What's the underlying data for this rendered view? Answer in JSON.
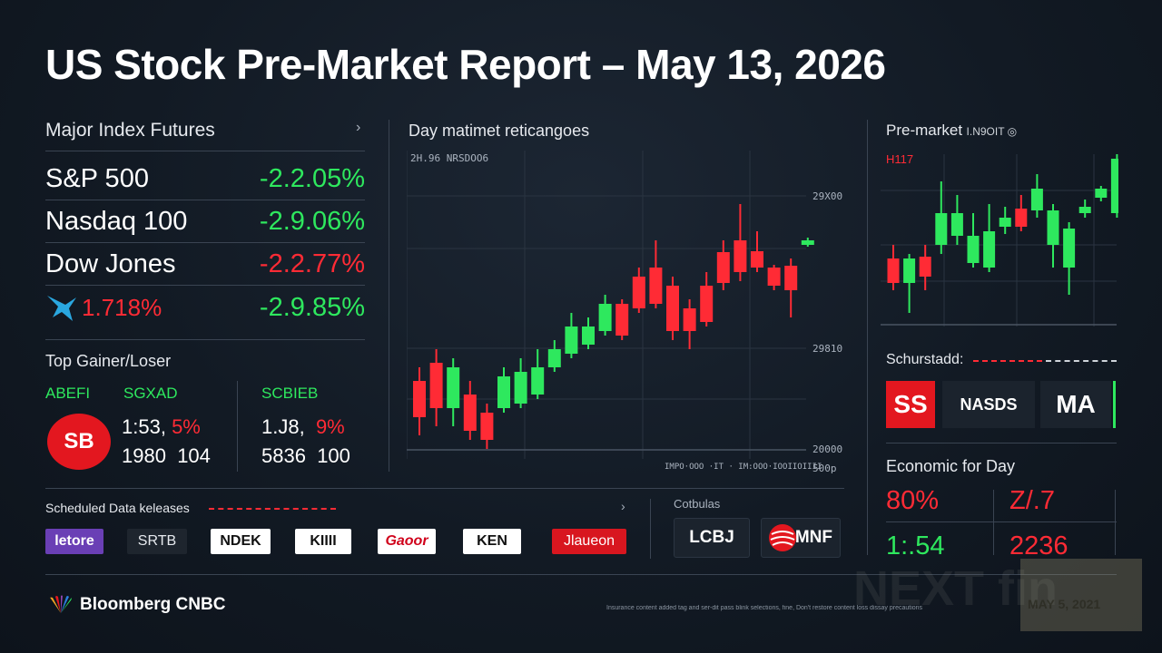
{
  "title": "US Stock Pre-Market Report – May 13, 2026",
  "futures": {
    "header": "Major Index Futures",
    "rows": [
      {
        "name": "S&P 500",
        "change": "-2.2.05%",
        "color": "#2ee85e"
      },
      {
        "name": "Nasdaq 100",
        "change": "-2.9.06%",
        "color": "#2ee85e"
      },
      {
        "name": "Dow Jones",
        "change": "-2.2.77%",
        "color": "#ff2b35"
      },
      {
        "name": "1.718%",
        "change": "-2.9.85%",
        "color": "#2ee85e",
        "name_color": "#ff2b35",
        "icon": "bird-logo-icon"
      }
    ]
  },
  "gainers": {
    "header": "Top Gainer/Loser",
    "tickers": [
      "ABEFI",
      "SGXAD",
      "SCBIEB"
    ],
    "badge": "SB",
    "left_line1": "1:53,",
    "left_line1_pct": "5%",
    "left_line2": "1980",
    "left_line2_b": "104",
    "right_line1": "1.J8,",
    "right_line1_pct": "9%",
    "right_line2": "5836",
    "right_line2_b": "100"
  },
  "main_chart": {
    "header": "Day matimet reticangoes",
    "top_note": "2H.96  NRSDOO6",
    "axis_labels": [
      "29X00",
      "29810",
      "20000",
      "500p"
    ],
    "bottom_note": "IMPO·OOO ·IT · IM:OOO·IOOIIOIIII"
  },
  "scheduled": {
    "header": "Scheduled Data keleases",
    "logos": [
      {
        "label": "letore",
        "bg": "#6a3fb5",
        "fg": "#ffffff"
      },
      {
        "label": "SRTB",
        "bg": "#1e252e",
        "fg": "#e6e9ee"
      },
      {
        "label": "NDEK",
        "bg": "#ffffff",
        "fg": "#111111"
      },
      {
        "label": "KIIII",
        "bg": "#ffffff",
        "fg": "#111111"
      },
      {
        "label": "Gaoor",
        "bg": "#ffffff",
        "fg": "#d0021b"
      },
      {
        "label": "KEN",
        "bg": "#ffffff",
        "fg": "#111111"
      },
      {
        "label": "Jlaueon",
        "bg": "#d8161f",
        "fg": "#ffffff"
      }
    ]
  },
  "catalysts": {
    "header": "Cotbulas",
    "logos": [
      {
        "label": "LCBJ",
        "bg": "#1b232d",
        "fg": "#ffffff"
      },
      {
        "label": "MNF",
        "bg": "#1b232d",
        "fg": "#ffffff"
      }
    ]
  },
  "premarket": {
    "header": "Pre-market",
    "header_tail": "I.N9OIT ◎",
    "note": "H117"
  },
  "schedule_right": {
    "header": "Schurstadd:",
    "tiles": [
      {
        "label": "SS",
        "bg": "#e3171f",
        "fg": "#ffffff"
      },
      {
        "label": "NASDS",
        "bg": "#1b232d",
        "fg": "#ffffff"
      },
      {
        "label": "MA",
        "bg": "#1b232d",
        "fg": "#ffffff"
      }
    ]
  },
  "economic": {
    "header": "Economic for Day",
    "values": [
      {
        "text": "80%",
        "color": "#ff2b35"
      },
      {
        "text": "Z/.7",
        "color": "#ff2b35"
      },
      {
        "text": "1:.54",
        "color": "#2ee85e"
      },
      {
        "text": "2236",
        "color": "#ff2b35"
      }
    ]
  },
  "footer": {
    "sources": "Bloomberg CNBC",
    "fine_print": "Insurance content added tag and ser-dit pass blink selections, fine, Don't restore content loss dissay precautions",
    "watermark": "NEXT fin",
    "watermark_date": "MAY 5, 2021"
  },
  "chart_data": [
    {
      "type": "candlestick",
      "title": "Day matimet reticangoes",
      "series": [
        {
          "o": 420,
          "c": 460,
          "h": 480,
          "l": 405
        },
        {
          "o": 400,
          "c": 450,
          "h": 470,
          "l": 385
        },
        {
          "o": 450,
          "c": 405,
          "h": 470,
          "l": 395
        },
        {
          "o": 435,
          "c": 475,
          "h": 485,
          "l": 420
        },
        {
          "o": 455,
          "c": 485,
          "h": 495,
          "l": 445
        },
        {
          "o": 450,
          "c": 415,
          "h": 455,
          "l": 405
        },
        {
          "o": 445,
          "c": 410,
          "h": 450,
          "l": 395
        },
        {
          "o": 435,
          "c": 405,
          "h": 440,
          "l": 385
        },
        {
          "o": 405,
          "c": 385,
          "h": 410,
          "l": 375
        },
        {
          "o": 390,
          "c": 360,
          "h": 395,
          "l": 345
        },
        {
          "o": 380,
          "c": 360,
          "h": 385,
          "l": 350
        },
        {
          "o": 365,
          "c": 335,
          "h": 370,
          "l": 325
        },
        {
          "o": 335,
          "c": 370,
          "h": 375,
          "l": 330
        },
        {
          "o": 305,
          "c": 340,
          "h": 345,
          "l": 295
        },
        {
          "o": 295,
          "c": 335,
          "h": 340,
          "l": 265
        },
        {
          "o": 315,
          "c": 365,
          "h": 375,
          "l": 305
        },
        {
          "o": 340,
          "c": 365,
          "h": 385,
          "l": 330
        },
        {
          "o": 315,
          "c": 355,
          "h": 360,
          "l": 300
        },
        {
          "o": 278,
          "c": 312,
          "h": 320,
          "l": 265
        },
        {
          "o": 265,
          "c": 300,
          "h": 310,
          "l": 225
        },
        {
          "o": 277,
          "c": 295,
          "h": 300,
          "l": 255
        },
        {
          "o": 295,
          "c": 315,
          "h": 320,
          "l": 292
        },
        {
          "o": 293,
          "c": 320,
          "h": 350,
          "l": 285
        },
        {
          "o": 270,
          "c": 265,
          "h": 272,
          "l": 262
        }
      ]
    },
    {
      "type": "candlestick",
      "title": "Pre-market",
      "series": [
        {
          "o": 285,
          "c": 312,
          "h": 320,
          "l": 270
        },
        {
          "o": 312,
          "c": 285,
          "h": 345,
          "l": 280
        },
        {
          "o": 283,
          "c": 305,
          "h": 320,
          "l": 270
        },
        {
          "o": 270,
          "c": 235,
          "h": 280,
          "l": 200
        },
        {
          "o": 260,
          "c": 235,
          "h": 270,
          "l": 215
        },
        {
          "o": 290,
          "c": 260,
          "h": 295,
          "l": 235
        },
        {
          "o": 295,
          "c": 255,
          "h": 300,
          "l": 225
        },
        {
          "o": 250,
          "c": 240,
          "h": 258,
          "l": 228
        },
        {
          "o": 230,
          "c": 250,
          "h": 255,
          "l": 215
        },
        {
          "o": 232,
          "c": 208,
          "h": 240,
          "l": 192
        },
        {
          "o": 270,
          "c": 232,
          "h": 295,
          "l": 225
        },
        {
          "o": 295,
          "c": 252,
          "h": 325,
          "l": 245
        },
        {
          "o": 235,
          "c": 228,
          "h": 240,
          "l": 220
        },
        {
          "o": 218,
          "c": 208,
          "h": 222,
          "l": 205
        },
        {
          "o": 235,
          "c": 175,
          "h": 240,
          "l": 170
        }
      ]
    }
  ]
}
